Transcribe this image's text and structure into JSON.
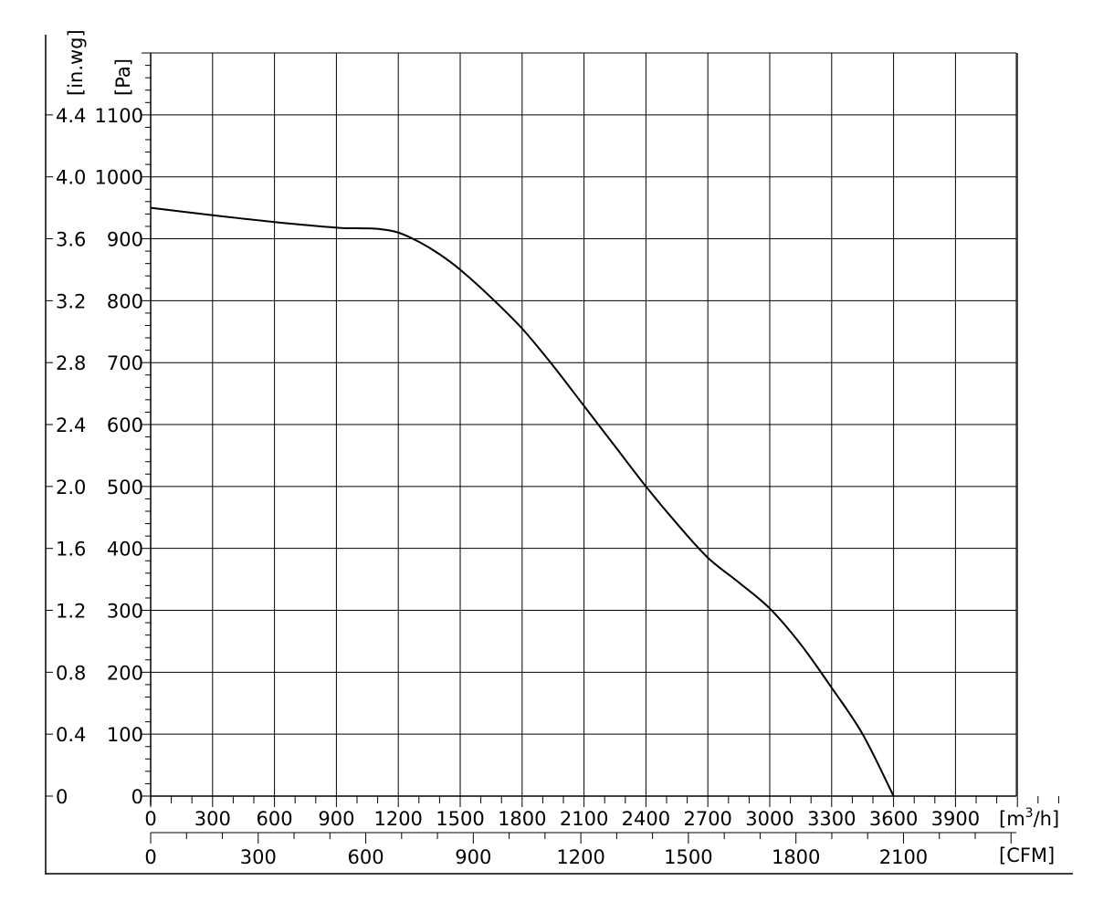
{
  "chart_data": {
    "type": "line",
    "x_unit": "[m³/h]",
    "x_unit_base": "[m",
    "x_unit_sup": "3",
    "x_unit_tail": "/h]",
    "x2_unit": "[CFM]",
    "y_unit": "[Pa]",
    "y2_unit": "[in.wg]",
    "xlim": [
      0,
      4400
    ],
    "ylim": [
      0,
      1200
    ],
    "grid": true,
    "x_ticks": [
      "0",
      "300",
      "600",
      "900",
      "1200",
      "1500",
      "1800",
      "2100",
      "2400",
      "2700",
      "3000",
      "3300",
      "3600",
      "3900"
    ],
    "x_tick_values": [
      0,
      300,
      600,
      900,
      1200,
      1500,
      1800,
      2100,
      2400,
      2700,
      3000,
      3300,
      3600,
      3900
    ],
    "cfm_ticks": [
      "0",
      "300",
      "600",
      "900",
      "1200",
      "1500",
      "1800",
      "2100"
    ],
    "cfm_tick_values": [
      0,
      300,
      600,
      900,
      1200,
      1500,
      1800,
      2100
    ],
    "pa_ticks": [
      "0",
      "100",
      "200",
      "300",
      "400",
      "500",
      "600",
      "700",
      "800",
      "900",
      "1000",
      "1100"
    ],
    "pa_tick_values": [
      0,
      100,
      200,
      300,
      400,
      500,
      600,
      700,
      800,
      900,
      1000,
      1100
    ],
    "inwg_ticks": [
      "0",
      "0.4",
      "0.8",
      "1.2",
      "1.6",
      "2.0",
      "2.4",
      "2.8",
      "3.2",
      "3.6",
      "4.0",
      "4.4"
    ],
    "series": [
      {
        "color": "#000000",
        "x": [
          0,
          300,
          600,
          900,
          1000,
          1100,
          1200,
          1300,
          1400,
          1500,
          1650,
          1800,
          1950,
          2100,
          2250,
          2400,
          2550,
          2700,
          2850,
          3000,
          3150,
          3300,
          3450,
          3600
        ],
        "y": [
          950,
          938,
          927,
          918,
          917,
          916,
          910,
          895,
          875,
          850,
          805,
          755,
          695,
          630,
          565,
          500,
          440,
          385,
          345,
          303,
          245,
          175,
          100,
          0
        ]
      }
    ]
  }
}
